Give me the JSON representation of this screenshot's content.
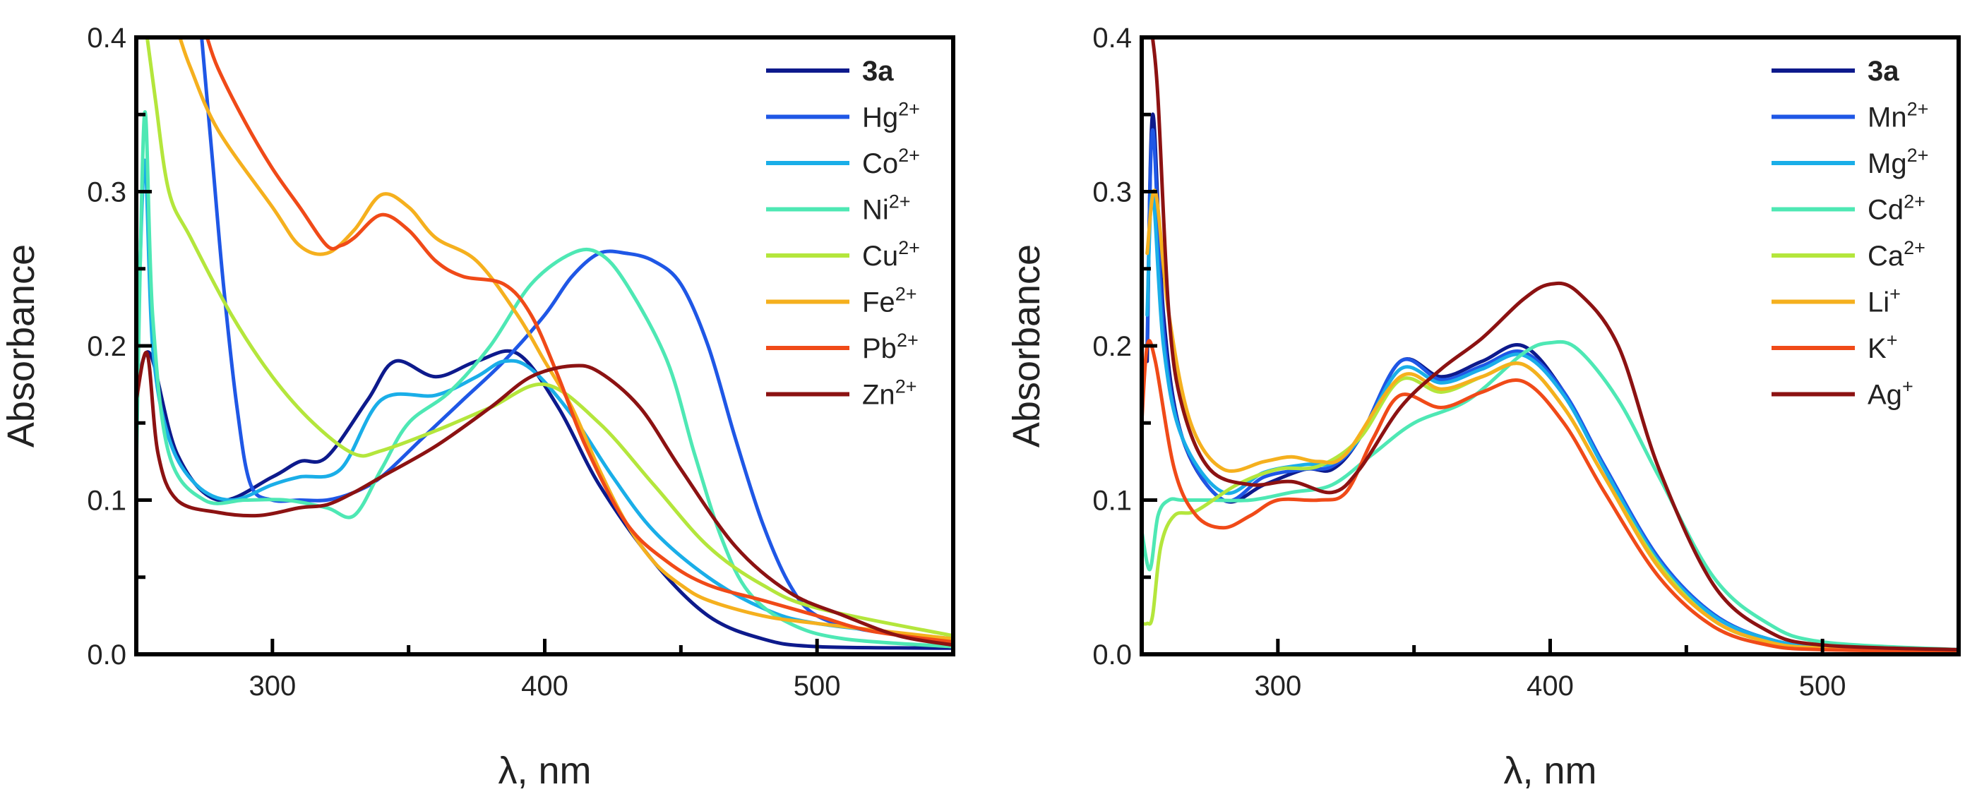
{
  "chart_data": [
    {
      "type": "line",
      "panel": "left",
      "xlabel": "λ, nm",
      "ylabel": "Absorbance",
      "xlim": [
        250,
        550
      ],
      "ylim": [
        0,
        0.4
      ],
      "xticks": [
        300,
        400,
        500
      ],
      "xtick_labels": [
        "300",
        "400",
        "500"
      ],
      "yticks": [
        0,
        0.1,
        0.2,
        0.3,
        0.4
      ],
      "ytick_labels": [
        "0.0",
        "0.1",
        "0.2",
        "0.3",
        "0.4"
      ],
      "legend_position": "top-right",
      "series": [
        {
          "name": "3a",
          "base": "3a",
          "charge": "",
          "bold": true,
          "color": "#0d1a8c",
          "x": [
            250,
            255,
            265,
            280,
            300,
            310,
            320,
            335,
            345,
            360,
            375,
            390,
            405,
            420,
            440,
            460,
            480,
            500,
            550
          ],
          "y": [
            0.17,
            0.195,
            0.13,
            0.1,
            0.115,
            0.125,
            0.128,
            0.165,
            0.19,
            0.18,
            0.19,
            0.195,
            0.16,
            0.11,
            0.06,
            0.025,
            0.01,
            0.005,
            0.004
          ]
        },
        {
          "name": "Hg2+",
          "base": "Hg",
          "charge": "2+",
          "bold": false,
          "color": "#1f57e6",
          "x": [
            274,
            278,
            282,
            287,
            292,
            300,
            310,
            320,
            330,
            340,
            355,
            370,
            385,
            400,
            410,
            420,
            430,
            440,
            450,
            460,
            470,
            480,
            490,
            500,
            520,
            550
          ],
          "y": [
            0.4,
            0.32,
            0.24,
            0.16,
            0.11,
            0.1,
            0.1,
            0.1,
            0.105,
            0.115,
            0.14,
            0.165,
            0.19,
            0.22,
            0.245,
            0.26,
            0.26,
            0.255,
            0.24,
            0.2,
            0.14,
            0.085,
            0.045,
            0.025,
            0.015,
            0.01
          ]
        },
        {
          "name": "Co2+",
          "base": "Co",
          "charge": "2+",
          "bold": false,
          "color": "#1aaee8",
          "x": [
            250,
            253,
            256,
            262,
            272,
            285,
            300,
            310,
            325,
            340,
            360,
            375,
            385,
            395,
            410,
            425,
            440,
            460,
            480,
            500,
            550
          ],
          "y": [
            0.16,
            0.32,
            0.2,
            0.14,
            0.11,
            0.1,
            0.11,
            0.115,
            0.12,
            0.165,
            0.168,
            0.18,
            0.19,
            0.185,
            0.155,
            0.115,
            0.08,
            0.05,
            0.03,
            0.02,
            0.01
          ]
        },
        {
          "name": "Ni2+",
          "base": "Ni",
          "charge": "2+",
          "bold": false,
          "color": "#4ee8b4",
          "x": [
            250,
            253,
            256,
            262,
            275,
            290,
            305,
            320,
            330,
            340,
            350,
            365,
            380,
            395,
            410,
            420,
            430,
            445,
            455,
            465,
            475,
            490,
            510,
            550
          ],
          "y": [
            0.12,
            0.35,
            0.22,
            0.13,
            0.1,
            0.1,
            0.1,
            0.095,
            0.09,
            0.12,
            0.15,
            0.17,
            0.2,
            0.24,
            0.26,
            0.26,
            0.24,
            0.19,
            0.13,
            0.075,
            0.04,
            0.02,
            0.01,
            0.005
          ]
        },
        {
          "name": "Cu2+",
          "base": "Cu",
          "charge": "2+",
          "bold": false,
          "color": "#b4e63c",
          "x": [
            254,
            257,
            262,
            270,
            285,
            300,
            315,
            330,
            340,
            360,
            380,
            400,
            420,
            440,
            460,
            480,
            500,
            550
          ],
          "y": [
            0.4,
            0.36,
            0.3,
            0.27,
            0.22,
            0.18,
            0.15,
            0.13,
            0.132,
            0.145,
            0.16,
            0.175,
            0.15,
            0.11,
            0.07,
            0.045,
            0.03,
            0.012
          ]
        },
        {
          "name": "Fe2+",
          "base": "Fe",
          "charge": "2+",
          "bold": false,
          "color": "#f5b01e",
          "x": [
            266,
            270,
            280,
            300,
            310,
            320,
            330,
            340,
            350,
            360,
            375,
            390,
            400,
            410,
            420,
            430,
            440,
            450,
            460,
            480,
            500,
            550
          ],
          "y": [
            0.4,
            0.38,
            0.34,
            0.29,
            0.265,
            0.26,
            0.275,
            0.298,
            0.29,
            0.27,
            0.255,
            0.22,
            0.19,
            0.16,
            0.12,
            0.085,
            0.06,
            0.045,
            0.035,
            0.025,
            0.02,
            0.01
          ]
        },
        {
          "name": "Pb2+",
          "base": "Pb",
          "charge": "2+",
          "bold": false,
          "color": "#f04a18",
          "x": [
            276,
            280,
            290,
            300,
            310,
            320,
            325,
            330,
            340,
            350,
            360,
            370,
            385,
            395,
            405,
            415,
            430,
            445,
            460,
            480,
            500,
            520,
            550
          ],
          "y": [
            0.4,
            0.38,
            0.345,
            0.315,
            0.29,
            0.265,
            0.265,
            0.27,
            0.285,
            0.275,
            0.255,
            0.245,
            0.24,
            0.22,
            0.18,
            0.135,
            0.085,
            0.06,
            0.045,
            0.035,
            0.025,
            0.015,
            0.008
          ]
        },
        {
          "name": "Zn2+",
          "base": "Zn",
          "charge": "2+",
          "bold": false,
          "color": "#8c1212",
          "x": [
            250,
            254,
            258,
            265,
            280,
            295,
            310,
            320,
            330,
            340,
            360,
            380,
            395,
            410,
            420,
            435,
            450,
            470,
            490,
            510,
            530,
            550
          ],
          "y": [
            0.165,
            0.195,
            0.13,
            0.1,
            0.092,
            0.09,
            0.095,
            0.097,
            0.105,
            0.115,
            0.135,
            0.16,
            0.18,
            0.187,
            0.183,
            0.16,
            0.12,
            0.07,
            0.04,
            0.025,
            0.012,
            0.006
          ]
        }
      ]
    },
    {
      "type": "line",
      "panel": "right",
      "xlabel": "λ, nm",
      "ylabel": "Absorbance",
      "xlim": [
        250,
        550
      ],
      "ylim": [
        0,
        0.4
      ],
      "xticks": [
        300,
        400,
        500
      ],
      "xtick_labels": [
        "300",
        "400",
        "500"
      ],
      "yticks": [
        0,
        0.1,
        0.2,
        0.3,
        0.4
      ],
      "ytick_labels": [
        "0.0",
        "0.1",
        "0.2",
        "0.3",
        "0.4"
      ],
      "legend_position": "top-right",
      "series": [
        {
          "name": "3a",
          "base": "3a",
          "charge": "",
          "bold": true,
          "color": "#0d1a8c",
          "x": [
            252,
            254,
            258,
            265,
            280,
            295,
            310,
            320,
            330,
            345,
            360,
            375,
            390,
            405,
            420,
            440,
            460,
            480,
            500,
            550
          ],
          "y": [
            0.19,
            0.35,
            0.22,
            0.14,
            0.1,
            0.11,
            0.12,
            0.12,
            0.14,
            0.19,
            0.18,
            0.19,
            0.2,
            0.17,
            0.12,
            0.06,
            0.025,
            0.01,
            0.005,
            0.003
          ]
        },
        {
          "name": "Mn2+",
          "base": "Mn",
          "charge": "2+",
          "bold": false,
          "color": "#1f57e6",
          "x": [
            252,
            254,
            258,
            265,
            280,
            295,
            310,
            320,
            330,
            345,
            360,
            375,
            390,
            405,
            420,
            440,
            460,
            480,
            500,
            550
          ],
          "y": [
            0.2,
            0.34,
            0.21,
            0.14,
            0.1,
            0.115,
            0.12,
            0.122,
            0.14,
            0.19,
            0.178,
            0.187,
            0.196,
            0.17,
            0.122,
            0.062,
            0.026,
            0.01,
            0.005,
            0.003
          ]
        },
        {
          "name": "Mg2+",
          "base": "Mg",
          "charge": "2+",
          "bold": false,
          "color": "#1aaee8",
          "x": [
            252,
            254,
            258,
            265,
            280,
            295,
            310,
            320,
            330,
            345,
            360,
            375,
            390,
            405,
            420,
            440,
            460,
            480,
            500,
            550
          ],
          "y": [
            0.22,
            0.3,
            0.2,
            0.14,
            0.105,
            0.118,
            0.123,
            0.124,
            0.14,
            0.185,
            0.176,
            0.185,
            0.194,
            0.168,
            0.12,
            0.06,
            0.025,
            0.01,
            0.005,
            0.003
          ]
        },
        {
          "name": "Cd2+",
          "base": "Cd",
          "charge": "2+",
          "bold": false,
          "color": "#4ee8b4",
          "x": [
            250,
            253,
            256,
            260,
            265,
            275,
            290,
            305,
            320,
            335,
            350,
            370,
            390,
            400,
            410,
            425,
            440,
            460,
            480,
            500,
            550
          ],
          "y": [
            0.08,
            0.055,
            0.09,
            0.1,
            0.1,
            0.1,
            0.1,
            0.105,
            0.11,
            0.13,
            0.15,
            0.165,
            0.195,
            0.202,
            0.198,
            0.165,
            0.115,
            0.05,
            0.02,
            0.008,
            0.003
          ]
        },
        {
          "name": "Ca2+",
          "base": "Ca",
          "charge": "2+",
          "bold": false,
          "color": "#b4e63c",
          "x": [
            250,
            252,
            254,
            257,
            262,
            270,
            285,
            300,
            315,
            330,
            345,
            360,
            375,
            390,
            405,
            420,
            440,
            460,
            480,
            500,
            550
          ],
          "y": [
            0.02,
            0.02,
            0.025,
            0.07,
            0.09,
            0.093,
            0.11,
            0.12,
            0.122,
            0.14,
            0.178,
            0.17,
            0.18,
            0.188,
            0.16,
            0.115,
            0.058,
            0.022,
            0.008,
            0.004,
            0.002
          ]
        },
        {
          "name": "Li+",
          "base": "Li",
          "charge": "+",
          "bold": false,
          "color": "#f5b01e",
          "x": [
            252,
            255,
            260,
            268,
            280,
            295,
            305,
            315,
            325,
            345,
            360,
            375,
            390,
            405,
            420,
            440,
            460,
            480,
            500,
            550
          ],
          "y": [
            0.26,
            0.3,
            0.22,
            0.15,
            0.12,
            0.125,
            0.128,
            0.125,
            0.13,
            0.18,
            0.172,
            0.18,
            0.188,
            0.16,
            0.115,
            0.056,
            0.022,
            0.008,
            0.004,
            0.002
          ]
        },
        {
          "name": "K+",
          "base": "K",
          "charge": "+",
          "bold": false,
          "color": "#f04a18",
          "x": [
            250,
            252,
            255,
            262,
            270,
            280,
            290,
            300,
            315,
            325,
            335,
            345,
            360,
            375,
            390,
            405,
            420,
            440,
            460,
            480,
            500,
            550
          ],
          "y": [
            0.15,
            0.2,
            0.19,
            0.12,
            0.09,
            0.082,
            0.09,
            0.1,
            0.1,
            0.105,
            0.14,
            0.168,
            0.16,
            0.17,
            0.177,
            0.15,
            0.105,
            0.05,
            0.018,
            0.006,
            0.003,
            0.002
          ]
        },
        {
          "name": "Ag+",
          "base": "Ag",
          "charge": "+",
          "bold": false,
          "color": "#8c1212",
          "x": [
            254,
            256,
            260,
            265,
            275,
            290,
            305,
            320,
            330,
            345,
            360,
            375,
            390,
            400,
            410,
            425,
            440,
            460,
            480,
            500,
            550
          ],
          "y": [
            0.4,
            0.36,
            0.22,
            0.16,
            0.12,
            0.11,
            0.112,
            0.105,
            0.12,
            0.16,
            0.185,
            0.205,
            0.23,
            0.24,
            0.235,
            0.2,
            0.12,
            0.045,
            0.015,
            0.006,
            0.003
          ]
        }
      ]
    }
  ]
}
